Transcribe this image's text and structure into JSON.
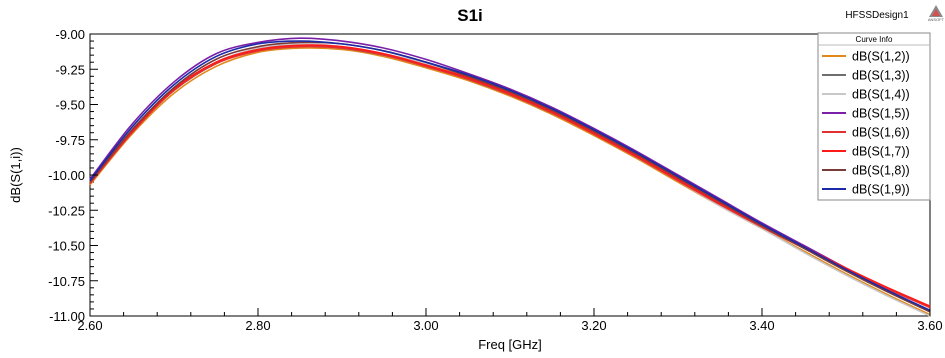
{
  "chart_data": {
    "type": "line",
    "title": "S1i",
    "design_label": "HFSSDesign1",
    "logo_text": "ANSOFT",
    "xlabel": "Freq [GHz]",
    "ylabel": "dB(S(1,i))",
    "xlim": [
      2.6,
      3.6
    ],
    "ylim": [
      -11.0,
      -9.0
    ],
    "x_ticks": [
      "2.60",
      "2.80",
      "3.00",
      "3.20",
      "3.40",
      "3.60"
    ],
    "y_ticks": [
      "-9.00",
      "-9.25",
      "-9.50",
      "-9.75",
      "-10.00",
      "-10.25",
      "-10.50",
      "-10.75",
      "-11.00"
    ],
    "grid": false,
    "legend_title": "Curve Info",
    "legend_position": "top-right",
    "x": [
      2.6,
      2.65,
      2.7,
      2.75,
      2.8,
      2.85,
      2.9,
      2.95,
      3.0,
      3.05,
      3.1,
      3.15,
      3.2,
      3.25,
      3.3,
      3.35,
      3.4,
      3.45,
      3.5,
      3.55,
      3.6
    ],
    "series": [
      {
        "name": "dB(S(1,2))",
        "color": "#e08a1e",
        "values": [
          -10.07,
          -9.71,
          -9.42,
          -9.23,
          -9.13,
          -9.1,
          -9.11,
          -9.16,
          -9.24,
          -9.33,
          -9.44,
          -9.57,
          -9.72,
          -9.88,
          -10.05,
          -10.22,
          -10.38,
          -10.54,
          -10.7,
          -10.85,
          -10.99
        ]
      },
      {
        "name": "dB(S(1,3))",
        "color": "#6e6e6e",
        "values": [
          -10.05,
          -9.69,
          -9.4,
          -9.21,
          -9.11,
          -9.08,
          -9.1,
          -9.15,
          -9.22,
          -9.32,
          -9.43,
          -9.56,
          -9.7,
          -9.86,
          -10.03,
          -10.2,
          -10.36,
          -10.52,
          -10.68,
          -10.83,
          -10.97
        ]
      },
      {
        "name": "dB(S(1,4))",
        "color": "#c8c8c8",
        "values": [
          -10.04,
          -9.68,
          -9.39,
          -9.2,
          -9.1,
          -9.07,
          -9.09,
          -9.14,
          -9.21,
          -9.31,
          -9.42,
          -9.55,
          -9.7,
          -9.87,
          -10.04,
          -10.22,
          -10.38,
          -10.55,
          -10.71,
          -10.86,
          -11.0
        ]
      },
      {
        "name": "dB(S(1,5))",
        "color": "#7a1fa8",
        "values": [
          -10.03,
          -9.64,
          -9.34,
          -9.14,
          -9.06,
          -9.03,
          -9.05,
          -9.1,
          -9.18,
          -9.28,
          -9.39,
          -9.52,
          -9.67,
          -9.83,
          -10.0,
          -10.17,
          -10.34,
          -10.5,
          -10.66,
          -10.82,
          -10.96
        ]
      },
      {
        "name": "dB(S(1,6))",
        "color": "#e23030",
        "values": [
          -10.06,
          -9.7,
          -9.4,
          -9.21,
          -9.12,
          -9.09,
          -9.1,
          -9.15,
          -9.23,
          -9.32,
          -9.43,
          -9.56,
          -9.71,
          -9.87,
          -10.04,
          -10.21,
          -10.37,
          -10.52,
          -10.67,
          -10.81,
          -10.94
        ]
      },
      {
        "name": "dB(S(1,7))",
        "color": "#ff1a1a",
        "values": [
          -10.05,
          -9.69,
          -9.39,
          -9.2,
          -9.11,
          -9.08,
          -9.09,
          -9.14,
          -9.22,
          -9.31,
          -9.42,
          -9.55,
          -9.7,
          -9.86,
          -10.03,
          -10.2,
          -10.36,
          -10.51,
          -10.66,
          -10.8,
          -10.93
        ]
      },
      {
        "name": "dB(S(1,8))",
        "color": "#7a3b3b",
        "values": [
          -10.05,
          -9.68,
          -9.38,
          -9.18,
          -9.09,
          -9.06,
          -9.07,
          -9.12,
          -9.2,
          -9.3,
          -9.41,
          -9.54,
          -9.69,
          -9.85,
          -10.02,
          -10.19,
          -10.36,
          -10.52,
          -10.68,
          -10.83,
          -10.97
        ]
      },
      {
        "name": "dB(S(1,9))",
        "color": "#1a2aa8",
        "values": [
          -10.04,
          -9.66,
          -9.36,
          -9.16,
          -9.07,
          -9.05,
          -9.07,
          -9.12,
          -9.2,
          -9.29,
          -9.4,
          -9.53,
          -9.68,
          -9.84,
          -10.01,
          -10.18,
          -10.35,
          -10.51,
          -10.67,
          -10.82,
          -10.96
        ]
      }
    ]
  }
}
